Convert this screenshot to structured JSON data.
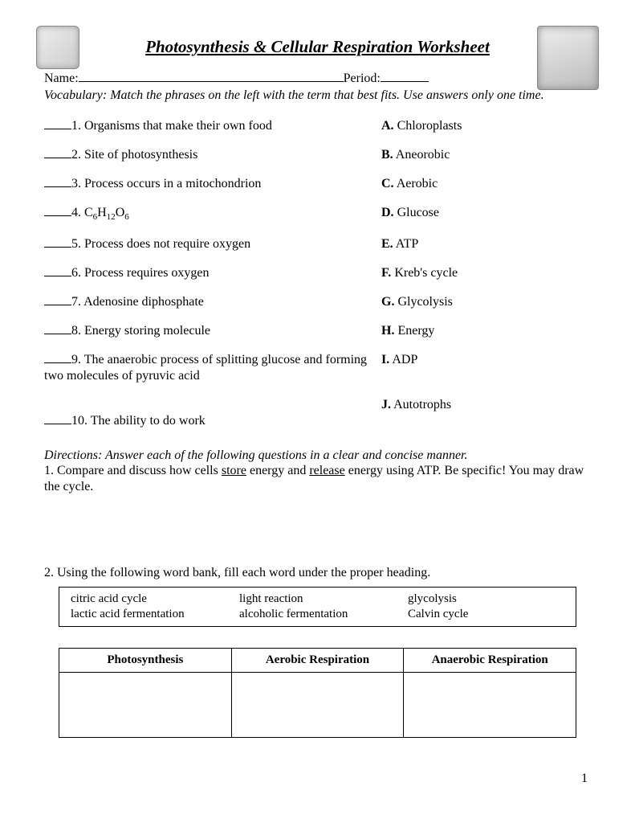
{
  "title": "Photosynthesis & Cellular Respiration Worksheet",
  "name_label": "Name:",
  "period_label": "Period:",
  "vocab_instructions": "Vocabulary: Match the phrases on the left with the term that best fits. Use answers only one time.",
  "matching": {
    "left": [
      "1. Organisms that make their own food",
      "2.  Site of photosynthesis",
      "3. Process occurs in a mitochondrion",
      "4. C₆H₁₂O₆",
      "5. Process does not require oxygen",
      "6. Process requires oxygen",
      "7. Adenosine diphosphate",
      "8. Energy storing molecule",
      "9. The anaerobic process of splitting glucose and forming two molecules of pyruvic acid",
      "10.  The ability to do work"
    ],
    "right": [
      {
        "letter": "A.",
        "term": "Chloroplasts"
      },
      {
        "letter": "B.",
        "term": "Aneorobic"
      },
      {
        "letter": "C.",
        "term": "Aerobic"
      },
      {
        "letter": "D.",
        "term": "Glucose"
      },
      {
        "letter": "E.",
        "term": "ATP"
      },
      {
        "letter": "F.",
        "term": "Kreb's cycle"
      },
      {
        "letter": "G.",
        "term": "Glycolysis"
      },
      {
        "letter": "H.",
        "term": "Energy"
      },
      {
        "letter": "I.",
        "term": "ADP"
      },
      {
        "letter": "J.",
        "term": "Autotrophs"
      }
    ]
  },
  "directions_text": "Directions: Answer each of the following questions in a clear and concise manner.",
  "q1_prefix": "1.  Compare and discuss how cells ",
  "q1_u1": "store",
  "q1_mid": " energy and ",
  "q1_u2": "release",
  "q1_suffix": " energy using ATP. Be specific! You may draw the cycle.",
  "q2_text": "2.  Using the following word bank, fill each word under the proper heading.",
  "word_bank": [
    [
      "citric acid cycle",
      "light reaction",
      "glycolysis"
    ],
    [
      "lactic acid fermentation",
      "alcoholic fermentation",
      "Calvin cycle"
    ]
  ],
  "table_headers": [
    "Photosynthesis",
    "Aerobic Respiration",
    "Anaerobic Respiration"
  ],
  "page_number": "1"
}
